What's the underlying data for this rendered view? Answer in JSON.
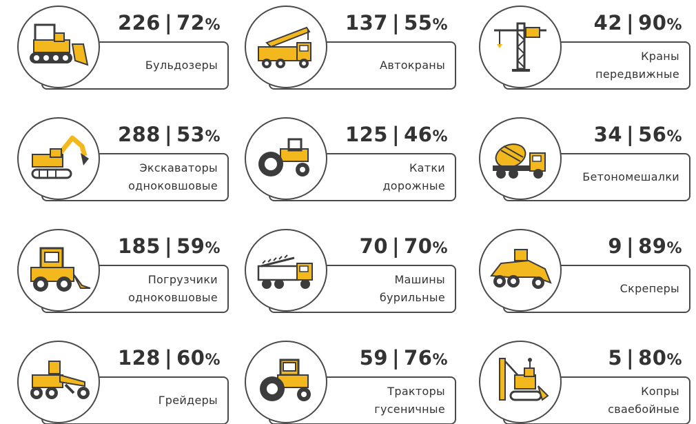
{
  "items": [
    {
      "count": "226",
      "percent": "72",
      "label": "Бульдозеры",
      "icon": "bulldozer-icon"
    },
    {
      "count": "137",
      "percent": "55",
      "label": "Автокраны",
      "icon": "truck-crane-icon"
    },
    {
      "count": "42",
      "percent": "90",
      "label": "Краны\nпередвижные",
      "icon": "tower-crane-icon"
    },
    {
      "count": "288",
      "percent": "53",
      "label": "Экскаваторы\nодноковшовые",
      "icon": "excavator-icon"
    },
    {
      "count": "125",
      "percent": "46",
      "label": "Катки\nдорожные",
      "icon": "road-roller-icon"
    },
    {
      "count": "34",
      "percent": "56",
      "label": "Бетономешалки",
      "icon": "concrete-mixer-icon"
    },
    {
      "count": "185",
      "percent": "59",
      "label": "Погрузчики\nодноковшовые",
      "icon": "loader-icon"
    },
    {
      "count": "70",
      "percent": "70",
      "label": "Машины\nбурильные",
      "icon": "drilling-truck-icon"
    },
    {
      "count": "9",
      "percent": "89",
      "label": "Скреперы",
      "icon": "scraper-icon"
    },
    {
      "count": "128",
      "percent": "60",
      "label": "Грейдеры",
      "icon": "grader-icon"
    },
    {
      "count": "59",
      "percent": "76",
      "label": "Тракторы\nгусеничные",
      "icon": "crawler-tractor-icon"
    },
    {
      "count": "5",
      "percent": "80",
      "label": "Копры\nсваебойные",
      "icon": "pile-driver-icon"
    }
  ],
  "separator": "|",
  "percent_sign": "%",
  "colors": {
    "accent": "#f2b81d",
    "dark": "#3c3c3c",
    "border": "#4a4a4a"
  }
}
